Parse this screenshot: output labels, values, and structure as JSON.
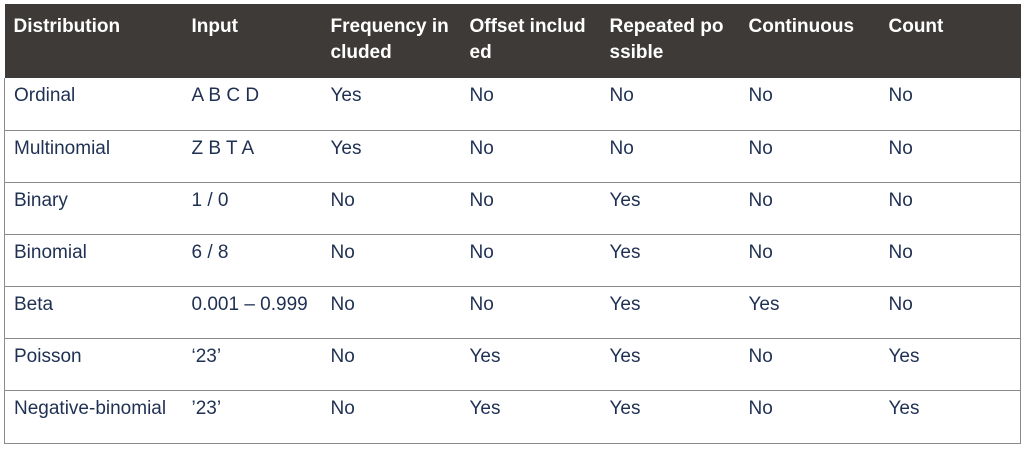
{
  "table": {
    "headers": [
      "Distribution",
      "Input",
      "Frequency included",
      "Offset included",
      "Repeated possible",
      "Continuous",
      "Count"
    ],
    "rows": [
      [
        "Ordinal",
        "A B C D",
        "Yes",
        "No",
        "No",
        "No",
        "No"
      ],
      [
        "Multinomial",
        "Z B T A",
        "Yes",
        "No",
        "No",
        "No",
        "No"
      ],
      [
        "Binary",
        "1 / 0",
        "No",
        "No",
        "Yes",
        "No",
        "No"
      ],
      [
        "Binomial",
        "6 / 8",
        "No",
        "No",
        "Yes",
        "No",
        "No"
      ],
      [
        "Beta",
        "0.001 – 0.999",
        "No",
        "No",
        "Yes",
        "Yes",
        "No"
      ],
      [
        "Poisson",
        "‘23’",
        "No",
        "Yes",
        "Yes",
        "No",
        "Yes"
      ],
      [
        "Negative-binomial",
        "’23’",
        "No",
        "Yes",
        "Yes",
        "No",
        "Yes"
      ]
    ]
  },
  "colors": {
    "header_bg": "#3e3a37",
    "header_text": "#ffffff",
    "body_text": "#1f3053",
    "grid_line": "#8a8a8a"
  }
}
